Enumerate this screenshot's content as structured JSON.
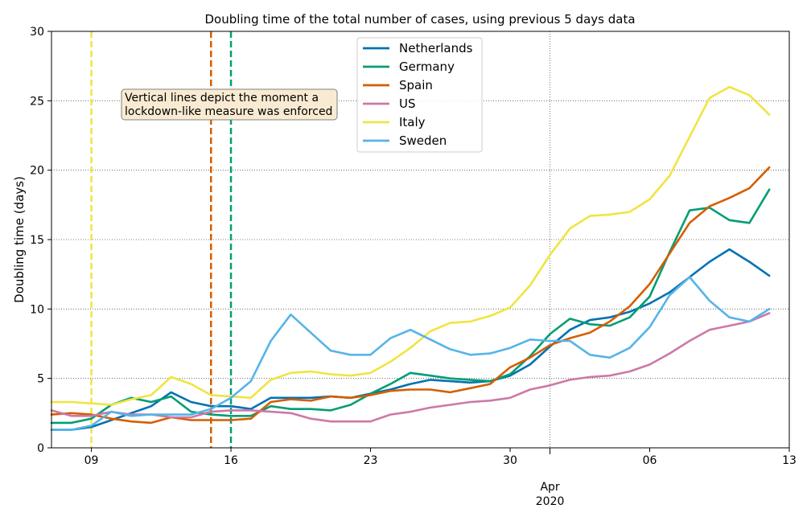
{
  "chart_data": {
    "type": "line",
    "title": "Doubling time of the total number of cases, using previous 5 days data",
    "ylabel": "Doubling time (days)",
    "xlabel": "",
    "x_start": "2020-03-07",
    "x_end": "2020-04-13",
    "ylim": [
      0,
      30
    ],
    "y_ticks": [
      "0",
      "5",
      "10",
      "15",
      "20",
      "25",
      "30"
    ],
    "x_ticks": [
      {
        "date": "2020-03-09",
        "label": "09"
      },
      {
        "date": "2020-03-16",
        "label": "16"
      },
      {
        "date": "2020-03-23",
        "label": "23"
      },
      {
        "date": "2020-03-30",
        "label": "30"
      },
      {
        "date": "2020-04-06",
        "label": "06"
      },
      {
        "date": "2020-04-13",
        "label": "13"
      }
    ],
    "month_label": "Apr",
    "month_label_date": "2020-04-01",
    "year_label": "2020",
    "grid": true,
    "legend_position": "top-center",
    "dates": [
      "2020-03-07",
      "2020-03-08",
      "2020-03-09",
      "2020-03-10",
      "2020-03-11",
      "2020-03-12",
      "2020-03-13",
      "2020-03-14",
      "2020-03-15",
      "2020-03-16",
      "2020-03-17",
      "2020-03-18",
      "2020-03-19",
      "2020-03-20",
      "2020-03-21",
      "2020-03-22",
      "2020-03-23",
      "2020-03-24",
      "2020-03-25",
      "2020-03-26",
      "2020-03-27",
      "2020-03-28",
      "2020-03-29",
      "2020-03-30",
      "2020-03-31",
      "2020-04-01",
      "2020-04-02",
      "2020-04-03",
      "2020-04-04",
      "2020-04-05",
      "2020-04-06",
      "2020-04-07",
      "2020-04-08",
      "2020-04-09",
      "2020-04-10",
      "2020-04-11",
      "2020-04-12"
    ],
    "series": [
      {
        "name": "Netherlands",
        "color": "#0072b2",
        "values": [
          1.3,
          1.3,
          1.5,
          2.0,
          2.5,
          3.0,
          4.0,
          3.3,
          3.0,
          3.0,
          2.8,
          3.6,
          3.6,
          3.6,
          3.7,
          3.6,
          3.9,
          4.2,
          4.6,
          4.9,
          4.8,
          4.7,
          4.8,
          5.2,
          6.0,
          7.3,
          8.5,
          9.2,
          9.4,
          9.8,
          10.4,
          11.2,
          12.3,
          13.4,
          14.3,
          13.4,
          12.4
        ]
      },
      {
        "name": "Germany",
        "color": "#009e73",
        "values": [
          1.8,
          1.8,
          2.1,
          3.1,
          3.6,
          3.3,
          3.7,
          2.6,
          2.4,
          2.3,
          2.3,
          3.0,
          2.8,
          2.8,
          2.7,
          3.1,
          3.9,
          4.6,
          5.4,
          5.2,
          5.0,
          4.9,
          4.8,
          5.3,
          6.6,
          8.2,
          9.3,
          8.9,
          8.8,
          9.4,
          10.9,
          14.1,
          17.1,
          17.3,
          16.4,
          16.2,
          18.6
        ]
      },
      {
        "name": "Spain",
        "color": "#d55e00",
        "values": [
          2.4,
          2.5,
          2.4,
          2.1,
          1.9,
          1.8,
          2.2,
          2.0,
          2.0,
          2.0,
          2.1,
          3.3,
          3.5,
          3.4,
          3.7,
          3.6,
          3.8,
          4.1,
          4.2,
          4.2,
          4.0,
          4.3,
          4.6,
          5.8,
          6.5,
          7.4,
          7.9,
          8.3,
          9.1,
          10.2,
          11.8,
          14.0,
          16.2,
          17.4,
          18.0,
          18.7,
          20.2
        ]
      },
      {
        "name": "US",
        "color": "#cc79a7",
        "values": [
          2.7,
          2.3,
          2.3,
          2.6,
          2.4,
          2.4,
          2.2,
          2.2,
          2.6,
          2.7,
          2.7,
          2.6,
          2.5,
          2.1,
          1.9,
          1.9,
          1.9,
          2.4,
          2.6,
          2.9,
          3.1,
          3.3,
          3.4,
          3.6,
          4.2,
          4.5,
          4.9,
          5.1,
          5.2,
          5.5,
          6.0,
          6.8,
          7.7,
          8.5,
          8.8,
          9.1,
          9.7
        ]
      },
      {
        "name": "Italy",
        "color": "#f0e442",
        "values": [
          3.3,
          3.3,
          3.2,
          3.1,
          3.5,
          3.8,
          5.1,
          4.6,
          3.8,
          3.7,
          3.6,
          4.9,
          5.4,
          5.5,
          5.3,
          5.2,
          5.4,
          6.2,
          7.2,
          8.4,
          9.0,
          9.1,
          9.5,
          10.1,
          11.7,
          13.9,
          15.8,
          16.7,
          16.8,
          17.0,
          17.9,
          19.6,
          22.4,
          25.2,
          26.0,
          25.4,
          24.0
        ]
      },
      {
        "name": "Sweden",
        "color": "#56b4e9",
        "values": [
          1.3,
          1.3,
          1.6,
          2.6,
          2.3,
          2.4,
          2.4,
          2.4,
          2.8,
          3.6,
          4.8,
          7.7,
          9.6,
          8.3,
          7.0,
          6.7,
          6.7,
          7.9,
          8.5,
          7.8,
          7.1,
          6.7,
          6.8,
          7.2,
          7.8,
          7.7,
          7.7,
          6.7,
          6.5,
          7.2,
          8.7,
          11.0,
          12.3,
          10.6,
          9.4,
          9.1,
          10.0
        ]
      }
    ],
    "vertical_lines": [
      {
        "date": "2020-03-09",
        "color": "#f0e442"
      },
      {
        "date": "2020-03-15",
        "color": "#d55e00"
      },
      {
        "date": "2020-03-16",
        "color": "#009e73"
      }
    ],
    "annotation": {
      "lines": [
        "Vertical lines depict the moment a",
        "lockdown-like measure was enforced"
      ],
      "anchor_date": "2020-03-11",
      "anchor_y": 24.4
    }
  }
}
